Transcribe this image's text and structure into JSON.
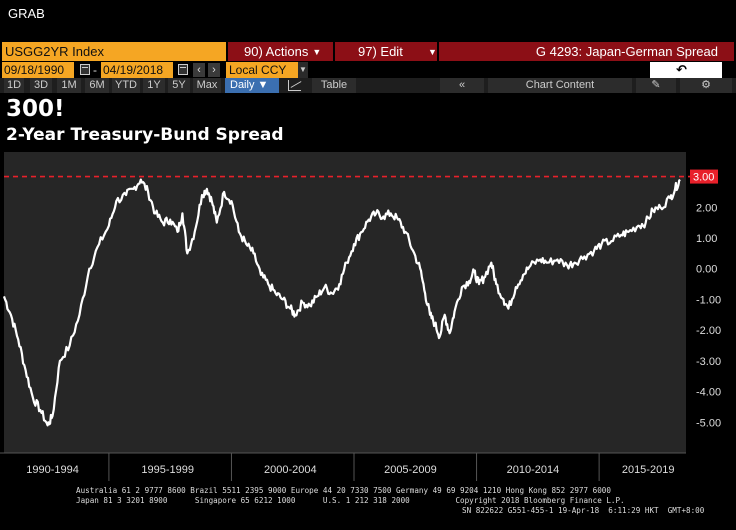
{
  "app": {
    "overlay_label": "GRAB"
  },
  "toolbar": {
    "ticker": "USGG2YR Index",
    "actions_label": "90) Actions",
    "edit_label": "97) Edit",
    "graph_title": "G 4293: Japan-German Spread",
    "start_date": "09/18/1990",
    "end_date": "04/19/2018",
    "currency": "Local CCY",
    "periods": [
      "1D",
      "3D",
      "1M",
      "6M",
      "YTD",
      "1Y",
      "5Y",
      "Max"
    ],
    "frequency": "Daily",
    "table_label": "Table",
    "collapse_label": "«",
    "chart_content_label": "Chart Content",
    "icons": [
      "calendar-icon",
      "chevron-left-icon",
      "chevron-right-icon",
      "undo-icon",
      "line-chart-icon",
      "pencil-icon",
      "gear-icon"
    ]
  },
  "headline": "300!",
  "subtitle": "2-Year Treasury-Bund Spread",
  "chart_data": {
    "type": "line",
    "x_tick_labels": [
      "1990-1994",
      "1995-1999",
      "2000-2004",
      "2005-2009",
      "2010-2014",
      "2015-2019"
    ],
    "y_ticks": [
      "2.00",
      "1.00",
      "0.00",
      "-1.00",
      "-2.00",
      "-3.00",
      "-4.00",
      "-5.00"
    ],
    "ylim": [
      -6.0,
      3.8
    ],
    "reference_line": {
      "value": 3.0,
      "label": "3.00",
      "color": "#e8202a",
      "style": "dashed"
    },
    "series": [
      {
        "color": "#ffffff",
        "points": [
          [
            1990.72,
            -0.9
          ],
          [
            1991.0,
            -1.5
          ],
          [
            1991.3,
            -2.3
          ],
          [
            1991.6,
            -3.3
          ],
          [
            1991.9,
            -4.2
          ],
          [
            1992.2,
            -4.6
          ],
          [
            1992.5,
            -5.1
          ],
          [
            1992.7,
            -4.8
          ],
          [
            1993.0,
            -3.0
          ],
          [
            1993.4,
            -2.5
          ],
          [
            1993.8,
            -1.5
          ],
          [
            1994.2,
            0.0
          ],
          [
            1994.6,
            0.8
          ],
          [
            1995.0,
            1.4
          ],
          [
            1995.3,
            2.2
          ],
          [
            1995.7,
            2.4
          ],
          [
            1996.0,
            2.6
          ],
          [
            1996.3,
            2.9
          ],
          [
            1996.6,
            2.5
          ],
          [
            1996.9,
            1.8
          ],
          [
            1997.2,
            1.5
          ],
          [
            1997.5,
            1.6
          ],
          [
            1997.8,
            1.2
          ],
          [
            1998.0,
            1.8
          ],
          [
            1998.2,
            0.5
          ],
          [
            1998.5,
            1.2
          ],
          [
            1998.8,
            2.4
          ],
          [
            1999.0,
            2.6
          ],
          [
            1999.2,
            2.2
          ],
          [
            1999.4,
            1.5
          ],
          [
            1999.7,
            2.5
          ],
          [
            2000.0,
            2.2
          ],
          [
            2000.3,
            1.2
          ],
          [
            2000.6,
            0.8
          ],
          [
            2000.9,
            0.5
          ],
          [
            2001.2,
            -0.2
          ],
          [
            2001.5,
            -0.5
          ],
          [
            2001.8,
            -0.8
          ],
          [
            2002.1,
            -1.0
          ],
          [
            2002.4,
            -1.3
          ],
          [
            2002.6,
            -1.5
          ],
          [
            2002.9,
            -1.1
          ],
          [
            2003.2,
            -1.2
          ],
          [
            2003.5,
            -0.9
          ],
          [
            2003.8,
            -0.6
          ],
          [
            2004.1,
            -0.8
          ],
          [
            2004.4,
            -0.5
          ],
          [
            2004.7,
            0.2
          ],
          [
            2005.0,
            0.8
          ],
          [
            2005.3,
            1.2
          ],
          [
            2005.6,
            1.6
          ],
          [
            2005.9,
            1.8
          ],
          [
            2006.2,
            1.7
          ],
          [
            2006.5,
            1.8
          ],
          [
            2006.8,
            1.6
          ],
          [
            2007.1,
            1.2
          ],
          [
            2007.4,
            0.6
          ],
          [
            2007.7,
            0.0
          ],
          [
            2007.9,
            -0.8
          ],
          [
            2008.1,
            -1.5
          ],
          [
            2008.3,
            -1.8
          ],
          [
            2008.5,
            -2.2
          ],
          [
            2008.7,
            -1.5
          ],
          [
            2008.9,
            -2.1
          ],
          [
            2009.1,
            -1.4
          ],
          [
            2009.4,
            -0.6
          ],
          [
            2009.7,
            -0.4
          ],
          [
            2009.9,
            -0.1
          ],
          [
            2010.1,
            -0.5
          ],
          [
            2010.3,
            -0.3
          ],
          [
            2010.6,
            0.2
          ],
          [
            2010.8,
            -0.5
          ],
          [
            2011.1,
            -1.0
          ],
          [
            2011.3,
            -1.3
          ],
          [
            2011.6,
            -0.6
          ],
          [
            2011.9,
            -0.2
          ],
          [
            2012.2,
            0.1
          ],
          [
            2012.6,
            0.3
          ],
          [
            2012.9,
            0.2
          ],
          [
            2013.3,
            0.3
          ],
          [
            2013.7,
            0.1
          ],
          [
            2014.0,
            0.2
          ],
          [
            2014.4,
            0.4
          ],
          [
            2014.8,
            0.6
          ],
          [
            2015.1,
            0.8
          ],
          [
            2015.5,
            0.9
          ],
          [
            2015.9,
            1.1
          ],
          [
            2016.2,
            1.2
          ],
          [
            2016.6,
            1.4
          ],
          [
            2016.9,
            1.5
          ],
          [
            2017.2,
            1.9
          ],
          [
            2017.5,
            2.0
          ],
          [
            2017.9,
            2.3
          ],
          [
            2018.1,
            2.6
          ],
          [
            2018.3,
            2.9
          ]
        ]
      }
    ]
  },
  "footer": {
    "line1": "Australia 61 2 9777 8600 Brazil 5511 2395 9000 Europe 44 20 7330 7500 Germany 49 69 9204 1210 Hong Kong 852 2977 6000",
    "line2": "Japan 81 3 3201 8900      Singapore 65 6212 1000      U.S. 1 212 318 2000          Copyright 2018 Bloomberg Finance L.P.",
    "line3": "SN 822622 G551-455-1 19-Apr-18  6:11:29 HKT  GMT+8:00"
  }
}
